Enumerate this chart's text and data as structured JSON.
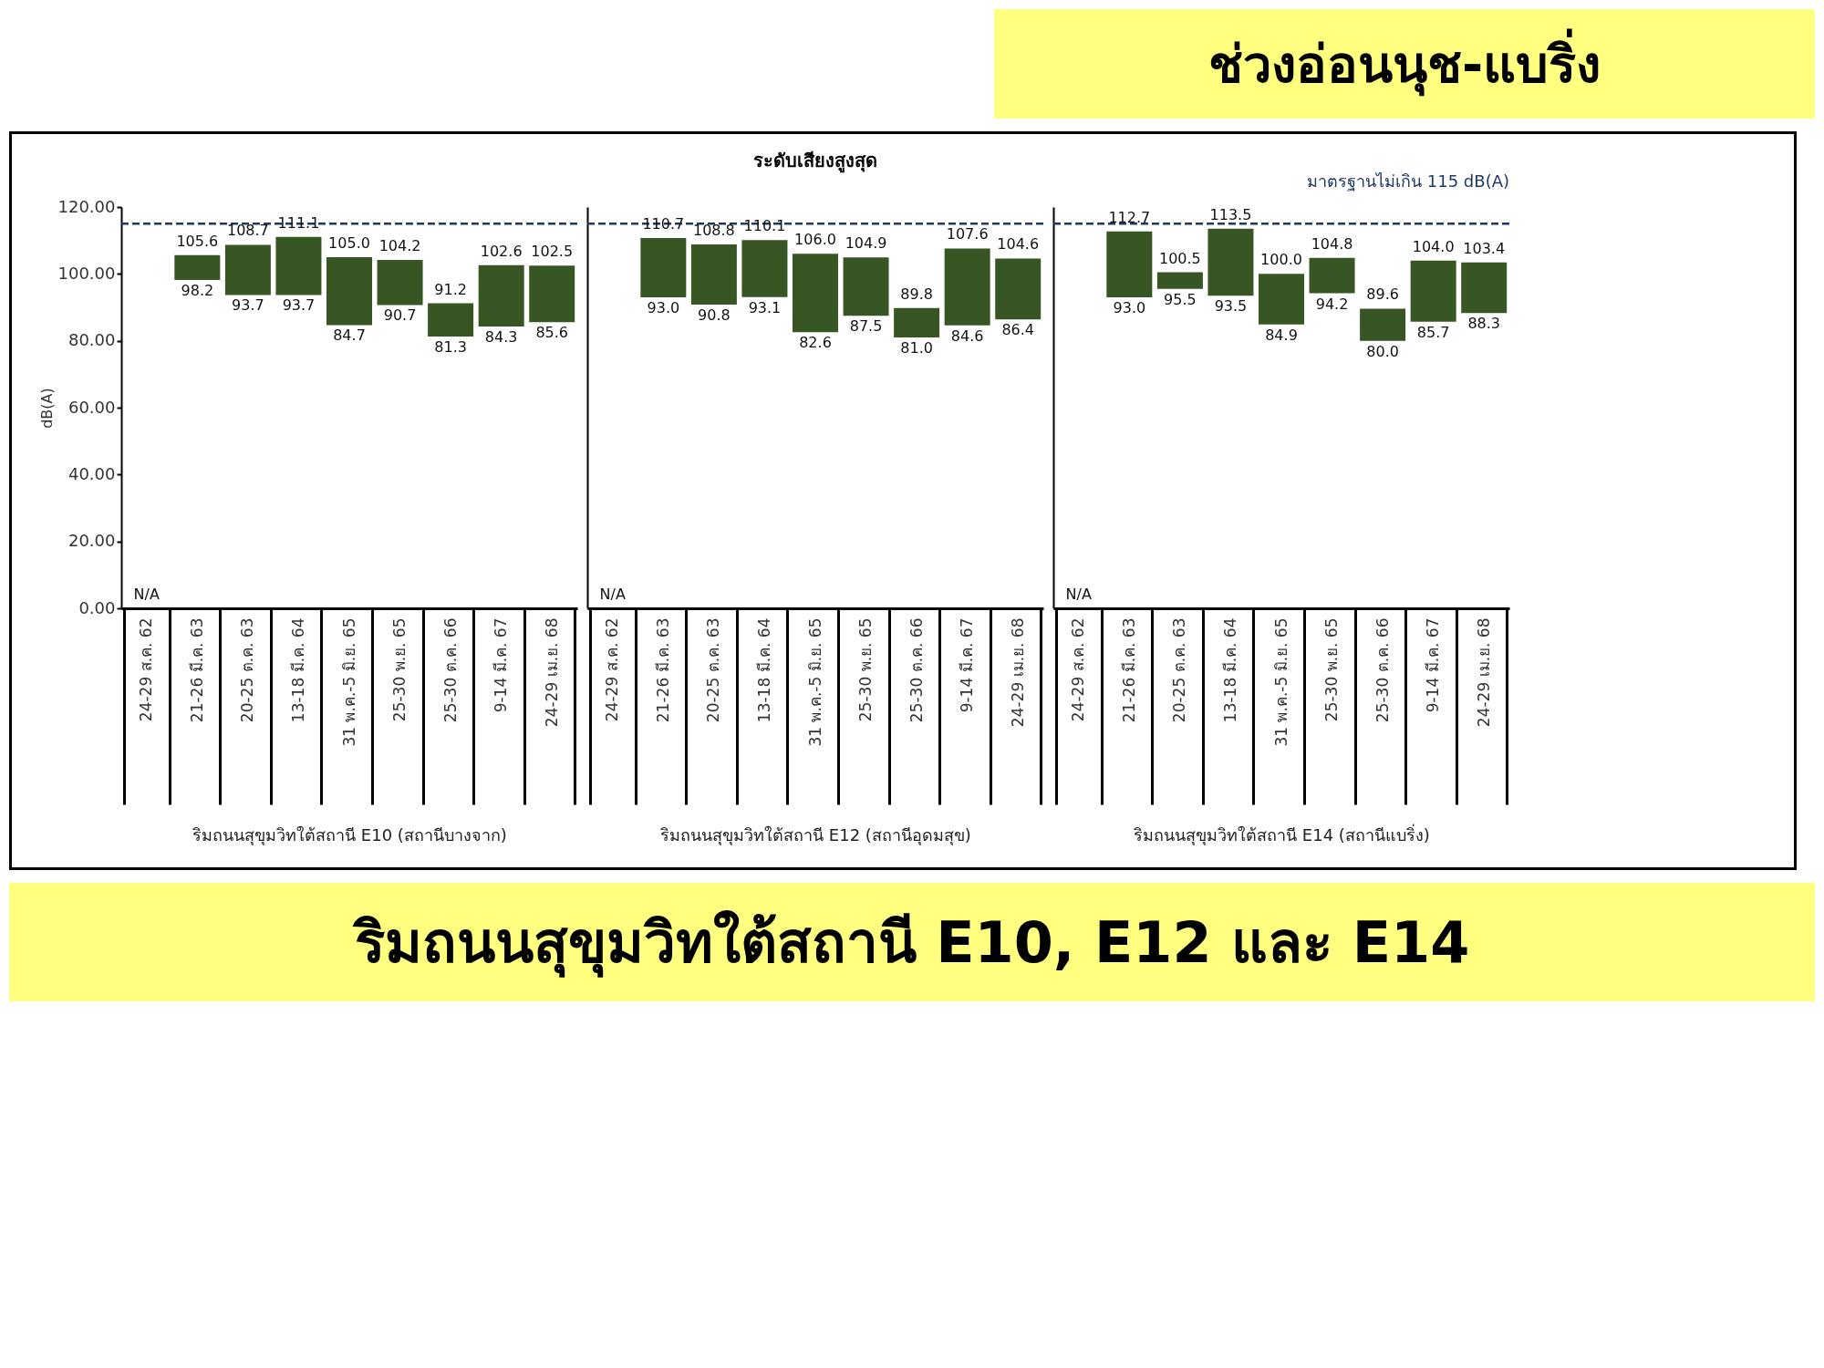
{
  "chart_data": [
    {
      "type": "bar",
      "ylabel": "dB(A)",
      "xlabel": "ริมถนนสุขุมวิทใต้สถานี E10 (สถานีบางจาก)",
      "annotations": [
        "ช่วงอ่อนนุช-แบริ่ง",
        "ริมถนนสุขุมวิทใต้สถานี E10, E12 และ E14",
        "N/A",
        {
          "text": "105.6",
          "x": "21-26 มี.ค. 63",
          "y": 105.6
        },
        {
          "text": "98.2",
          "x": "21-26 มี.ค. 63",
          "y": 98.2
        },
        {
          "text": "108.7",
          "x": "20-25 ต.ค. 63",
          "y": 108.7
        },
        {
          "text": "93.7",
          "x": "20-25 ต.ค. 63",
          "y": 93.7
        },
        {
          "text": "111.1",
          "x": "13-18 มี.ค. 64",
          "y": 111.1
        },
        {
          "text": "93.7",
          "x": "13-18 มี.ค. 64",
          "y": 93.7
        },
        {
          "text": "105.0",
          "x": "31 พ.ค.-5 มิ.ย. 65",
          "y": 105.0
        },
        {
          "text": "84.7",
          "x": "31 พ.ค.-5 มิ.ย. 65",
          "y": 84.7
        },
        {
          "text": "104.2",
          "x": "25-30 พ.ย. 65",
          "y": 104.2
        },
        {
          "text": "90.7",
          "x": "25-30 พ.ย. 65",
          "y": 90.7
        },
        {
          "text": "91.2",
          "x": "25-30 ต.ค. 66",
          "y": 91.2
        },
        {
          "text": "81.3",
          "x": "25-30 ต.ค. 66",
          "y": 81.3
        },
        {
          "text": "102.6",
          "x": "9-14 มี.ค. 67",
          "y": 102.6
        },
        {
          "text": "84.3",
          "x": "9-14 มี.ค. 67",
          "y": 84.3
        },
        {
          "text": "102.5",
          "x": "24-29 เม.ย. 68",
          "y": 102.5
        },
        {
          "text": "85.6",
          "x": "24-29 เม.ย. 68",
          "y": 85.6
        }
      ],
      "categories": [
        "24-29 ส.ค. 62",
        "21-26 มี.ค. 63",
        "20-25 ต.ค. 63",
        "13-18 มี.ค. 64",
        "31 พ.ค.-5 มิ.ย. 65",
        "25-30 พ.ย. 65",
        "25-30 ต.ค. 66",
        "9-14 มี.ค. 67",
        "24-29 เม.ย. 68"
      ],
      "base": [
        null,
        98.2,
        93.7,
        93.7,
        84.7,
        90.7,
        81.3,
        84.3,
        85.6
      ],
      "values": [
        null,
        7.4,
        15.0,
        17.4,
        20.3,
        13.5,
        9.9,
        18.3,
        16.9
      ],
      "color": "#375623",
      "ylim": [
        0,
        120
      ],
      "yticks": [
        {
          "value": 0,
          "label": "0.00"
        },
        {
          "value": 20,
          "label": "20.00"
        },
        {
          "value": 40,
          "label": "40.00"
        },
        {
          "value": 60,
          "label": "60.00"
        },
        {
          "value": 80,
          "label": "80.00"
        },
        {
          "value": 100,
          "label": "100.00"
        },
        {
          "value": 120,
          "label": "120.00"
        }
      ],
      "ref_lines": [
        {
          "axis": "y",
          "value": 115,
          "color": "#1f3864",
          "line_style": "dashed"
        }
      ]
    },
    {
      "type": "bar",
      "title": "ระดับเสียงสูงสุด",
      "xlabel": "ริมถนนสุขุมวิทใต้สถานี E12 (สถานีอุดมสุข)",
      "tick_labels": "x",
      "annotations": [
        "N/A",
        {
          "text": "110.7",
          "x": "21-26 มี.ค. 63",
          "y": 110.7
        },
        {
          "text": "93.0",
          "x": "21-26 มี.ค. 63",
          "y": 93.0
        },
        {
          "text": "108.8",
          "x": "20-25 ต.ค. 63",
          "y": 108.8
        },
        {
          "text": "90.8",
          "x": "20-25 ต.ค. 63",
          "y": 90.8
        },
        {
          "text": "110.1",
          "x": "13-18 มี.ค. 64",
          "y": 110.1
        },
        {
          "text": "93.1",
          "x": "13-18 มี.ค. 64",
          "y": 93.1
        },
        {
          "text": "106.0",
          "x": "31 พ.ค.-5 มิ.ย. 65",
          "y": 106.0
        },
        {
          "text": "82.6",
          "x": "31 พ.ค.-5 มิ.ย. 65",
          "y": 82.6
        },
        {
          "text": "104.9",
          "x": "25-30 พ.ย. 65",
          "y": 104.9
        },
        {
          "text": "87.5",
          "x": "25-30 พ.ย. 65",
          "y": 87.5
        },
        {
          "text": "89.8",
          "x": "25-30 ต.ค. 66",
          "y": 89.8
        },
        {
          "text": "81.0",
          "x": "25-30 ต.ค. 66",
          "y": 81.0
        },
        {
          "text": "107.6",
          "x": "9-14 มี.ค. 67",
          "y": 107.6
        },
        {
          "text": "84.6",
          "x": "9-14 มี.ค. 67",
          "y": 84.6
        },
        {
          "text": "104.6",
          "x": "24-29 เม.ย. 68",
          "y": 104.6
        },
        {
          "text": "86.4",
          "x": "24-29 เม.ย. 68",
          "y": 86.4
        }
      ],
      "categories": [
        "24-29 ส.ค. 62",
        "21-26 มี.ค. 63",
        "20-25 ต.ค. 63",
        "13-18 มี.ค. 64",
        "31 พ.ค.-5 มิ.ย. 65",
        "25-30 พ.ย. 65",
        "25-30 ต.ค. 66",
        "9-14 มี.ค. 67",
        "24-29 เม.ย. 68"
      ],
      "base": [
        null,
        93.0,
        90.8,
        93.1,
        82.6,
        87.5,
        81.0,
        84.6,
        86.4
      ],
      "values": [
        null,
        17.7,
        18.0,
        17.0,
        23.4,
        17.4,
        8.8,
        23.0,
        18.2
      ],
      "color": "#375623",
      "ylim": [
        0,
        120
      ],
      "ref_lines": [
        {
          "axis": "y",
          "value": 115,
          "color": "#1f3864",
          "line_style": "dashed"
        }
      ]
    },
    {
      "type": "bar",
      "xlabel": "ริมถนนสุขุมวิทใต้สถานี E14 (สถานีแบริ่ง)",
      "tick_labels": "x",
      "annotations": [
        "N/A",
        {
          "text": "112.7",
          "x": "21-26 มี.ค. 63",
          "y": 112.7
        },
        {
          "text": "93.0",
          "x": "21-26 มี.ค. 63",
          "y": 93.0
        },
        {
          "text": "100.5",
          "x": "20-25 ต.ค. 63",
          "y": 100.5
        },
        {
          "text": "95.5",
          "x": "20-25 ต.ค. 63",
          "y": 95.5
        },
        {
          "text": "113.5",
          "x": "13-18 มี.ค. 64",
          "y": 113.5
        },
        {
          "text": "93.5",
          "x": "13-18 มี.ค. 64",
          "y": 93.5
        },
        {
          "text": "100.0",
          "x": "31 พ.ค.-5 มิ.ย. 65",
          "y": 100.0
        },
        {
          "text": "84.9",
          "x": "31 พ.ค.-5 มิ.ย. 65",
          "y": 84.9
        },
        {
          "text": "104.8",
          "x": "25-30 พ.ย. 65",
          "y": 104.8
        },
        {
          "text": "94.2",
          "x": "25-30 พ.ย. 65",
          "y": 94.2
        },
        {
          "text": "89.6",
          "x": "25-30 ต.ค. 66",
          "y": 89.6
        },
        {
          "text": "80.0",
          "x": "25-30 ต.ค. 66",
          "y": 80.0
        },
        {
          "text": "104.0",
          "x": "9-14 มี.ค. 67",
          "y": 104.0
        },
        {
          "text": "85.7",
          "x": "9-14 มี.ค. 67",
          "y": 85.7
        },
        {
          "text": "103.4",
          "x": "24-29 เม.ย. 68",
          "y": 103.4
        },
        {
          "text": "88.3",
          "x": "24-29 เม.ย. 68",
          "y": 88.3
        }
      ],
      "categories": [
        "24-29 ส.ค. 62",
        "21-26 มี.ค. 63",
        "20-25 ต.ค. 63",
        "13-18 มี.ค. 64",
        "31 พ.ค.-5 มิ.ย. 65",
        "25-30 พ.ย. 65",
        "25-30 ต.ค. 66",
        "9-14 มี.ค. 67",
        "24-29 เม.ย. 68"
      ],
      "base": [
        null,
        93.0,
        95.5,
        93.5,
        84.9,
        94.2,
        80.0,
        85.7,
        88.3
      ],
      "values": [
        null,
        19.7,
        5.0,
        20.0,
        15.1,
        10.6,
        9.6,
        18.3,
        15.1
      ],
      "color": "#375623",
      "ylim": [
        0,
        120
      ],
      "ref_lines": [
        {
          "axis": "y",
          "value": 115,
          "color": "#1f3864",
          "line_style": "dashed",
          "label": "มาตรฐานไม่เกิน 115 dB(A)"
        }
      ]
    }
  ]
}
